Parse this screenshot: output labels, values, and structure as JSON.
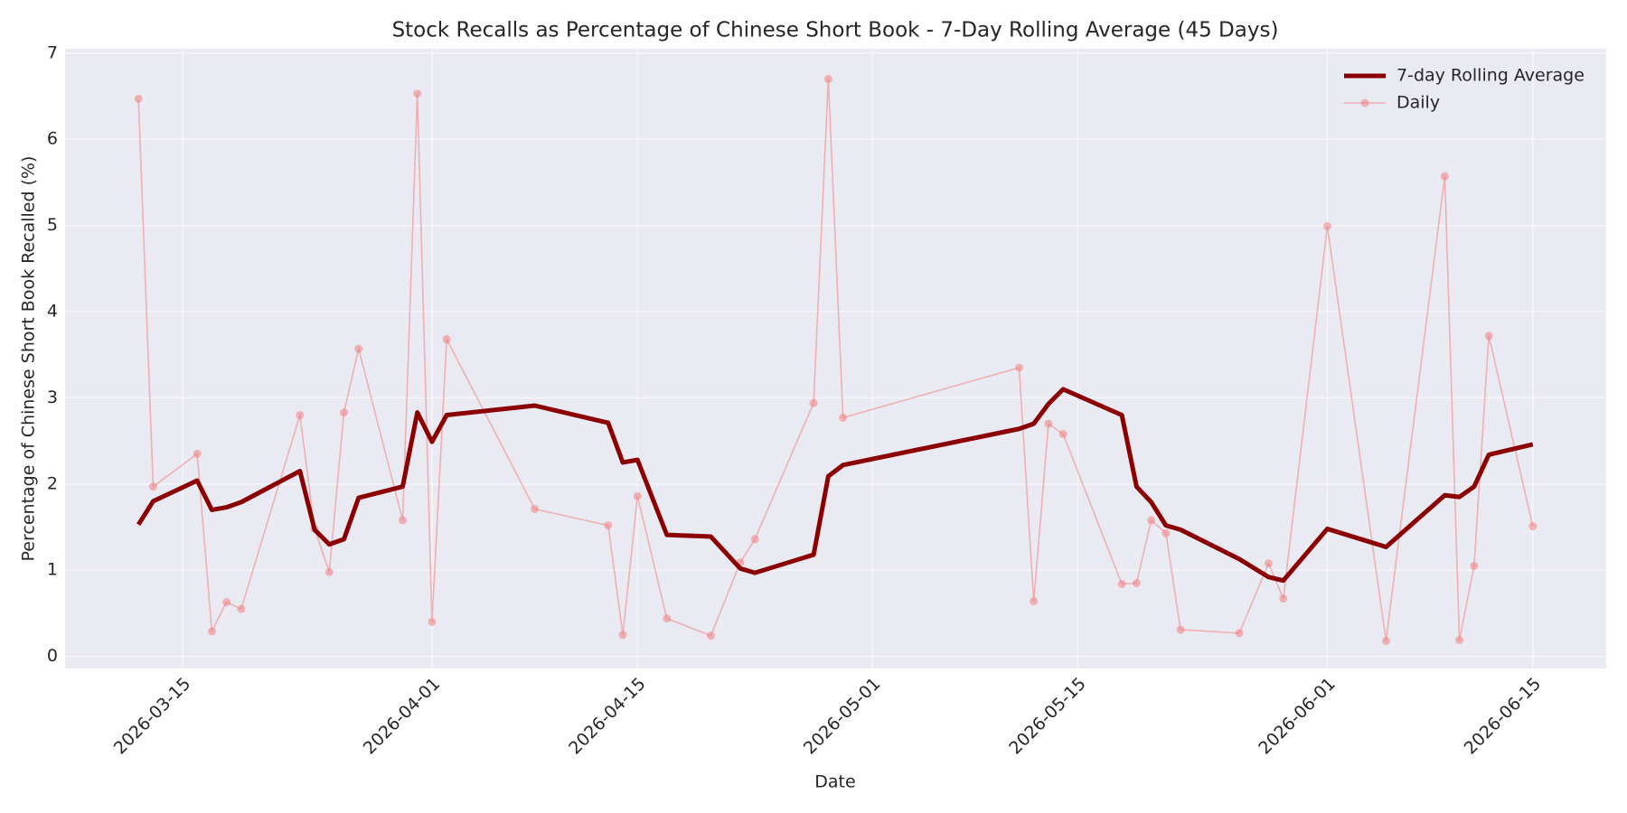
{
  "chart_data": {
    "type": "line",
    "title": "Stock Recalls as Percentage of Chinese Short Book - 7-Day Rolling Average (45 Days)",
    "x_label": "Date",
    "y_label": "Percentage of Chinese Short Book Recalled (%)",
    "x": [
      "2026-03-12",
      "2026-03-13",
      "2026-03-16",
      "2026-03-17",
      "2026-03-18",
      "2026-03-19",
      "2026-03-23",
      "2026-03-24",
      "2026-03-25",
      "2026-03-26",
      "2026-03-27",
      "2026-03-30",
      "2026-03-31",
      "2026-04-01",
      "2026-04-02",
      "2026-04-08",
      "2026-04-13",
      "2026-04-14",
      "2026-04-15",
      "2026-04-17",
      "2026-04-20",
      "2026-04-22",
      "2026-04-23",
      "2026-04-27",
      "2026-04-28",
      "2026-04-29",
      "2026-05-11",
      "2026-05-12",
      "2026-05-13",
      "2026-05-14",
      "2026-05-18",
      "2026-05-19",
      "2026-05-20",
      "2026-05-21",
      "2026-05-22",
      "2026-05-26",
      "2026-05-28",
      "2026-05-29",
      "2026-06-01",
      "2026-06-05",
      "2026-06-09",
      "2026-06-10",
      "2026-06-11",
      "2026-06-12",
      "2026-06-15"
    ],
    "series": [
      {
        "name": "7-day Rolling Average",
        "color": "#8b0000",
        "values": [
          1.53,
          1.8,
          2.04,
          1.7,
          1.73,
          1.79,
          2.15,
          1.47,
          1.3,
          1.36,
          1.84,
          1.97,
          2.83,
          2.49,
          2.8,
          2.91,
          2.71,
          2.25,
          2.28,
          1.41,
          1.39,
          1.02,
          0.97,
          1.18,
          2.09,
          2.22,
          2.64,
          2.7,
          2.93,
          3.1,
          2.8,
          1.97,
          1.79,
          1.52,
          1.47,
          1.13,
          0.92,
          0.88,
          1.48,
          1.27,
          1.87,
          1.85,
          1.97,
          2.34,
          2.46
        ]
      },
      {
        "name": "Daily",
        "color": "#f08080",
        "values": [
          6.47,
          1.97,
          2.35,
          0.29,
          0.63,
          0.55,
          2.8,
          1.48,
          0.98,
          2.83,
          3.57,
          1.58,
          6.53,
          0.4,
          3.68,
          1.71,
          1.52,
          0.25,
          1.86,
          0.44,
          0.24,
          1.09,
          1.36,
          2.94,
          6.7,
          2.77,
          3.35,
          0.64,
          2.7,
          2.58,
          0.84,
          0.85,
          1.58,
          1.43,
          0.31,
          0.27,
          1.08,
          0.67,
          4.99,
          0.18,
          5.57,
          0.19,
          1.05,
          3.72,
          1.51
        ]
      }
    ],
    "xlim": [
      "2026-03-07",
      "2026-06-20"
    ],
    "xticks": [
      "2026-03-15",
      "2026-04-01",
      "2026-04-15",
      "2026-05-01",
      "2026-05-15",
      "2026-06-01",
      "2026-06-15"
    ],
    "ylim": [
      -0.14,
      7.05
    ],
    "yticks": [
      0,
      1,
      2,
      3,
      4,
      5,
      6,
      7
    ],
    "grid": true,
    "legend": "upper right"
  }
}
